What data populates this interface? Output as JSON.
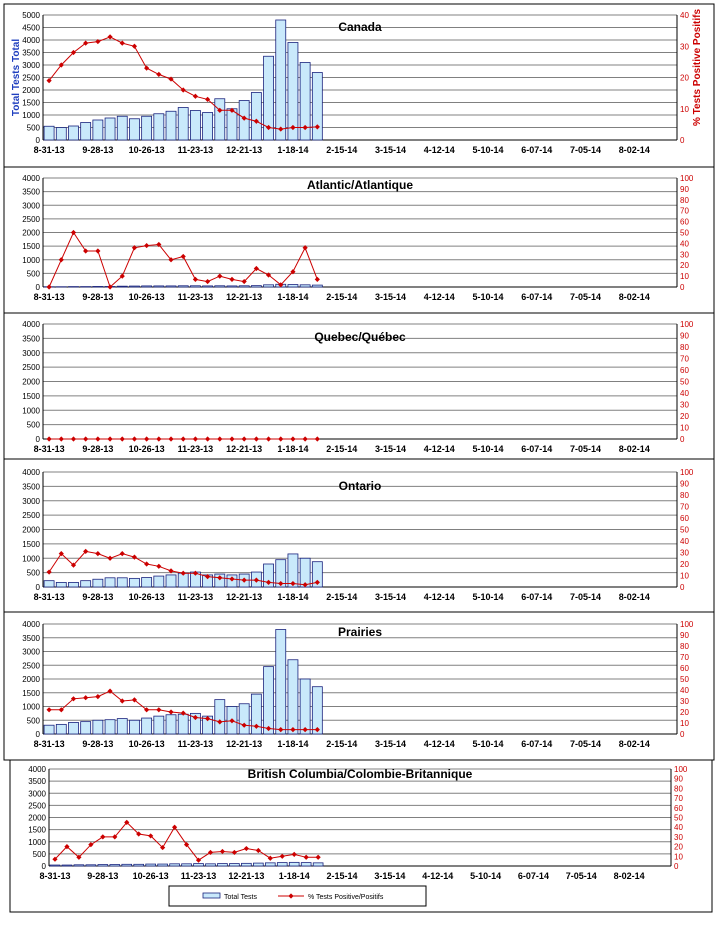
{
  "chart_data": [
    {
      "type": "bar+line",
      "title": "Canada",
      "ylabel": "Total Tests Total",
      "y2label": "% Tests Positive Positifs",
      "ylim": [
        0,
        5000
      ],
      "yticks": [
        0,
        500,
        1000,
        1500,
        2000,
        2500,
        3000,
        3500,
        4000,
        4500,
        5000
      ],
      "y2lim": [
        0,
        40
      ],
      "y2ticks": [
        0,
        10,
        20,
        30,
        40
      ],
      "x_tick_labels": [
        "8-31-13",
        "9-28-13",
        "10-26-13",
        "11-23-13",
        "12-21-13",
        "1-18-14",
        "2-15-14",
        "3-15-14",
        "4-12-14",
        "5-10-14",
        "6-07-14",
        "7-05-14",
        "8-02-14"
      ],
      "series": [
        {
          "name": "Total Tests",
          "kind": "bar",
          "values": [
            550,
            500,
            560,
            700,
            800,
            880,
            950,
            850,
            950,
            1050,
            1150,
            1300,
            1180,
            1100,
            1650,
            1250,
            1580,
            1900,
            3350,
            4800,
            3900,
            3100,
            2700
          ]
        },
        {
          "name": "% Tests Positive/Positifs",
          "kind": "line",
          "values": [
            19,
            24,
            28,
            31,
            31.5,
            33,
            31,
            30,
            23,
            21,
            19.5,
            16,
            14,
            13,
            9.5,
            9.5,
            7,
            6,
            4,
            3.5,
            4,
            4,
            4.2
          ]
        }
      ]
    },
    {
      "type": "bar+line",
      "title": "Atlantic/Atlantique",
      "ylim": [
        0,
        4000
      ],
      "yticks": [
        0,
        500,
        1000,
        1500,
        2000,
        2500,
        3000,
        3500,
        4000
      ],
      "y2lim": [
        0,
        100
      ],
      "y2ticks": [
        0,
        10,
        20,
        30,
        40,
        50,
        60,
        70,
        80,
        90,
        100
      ],
      "x_tick_labels": [
        "8-31-13",
        "9-28-13",
        "10-26-13",
        "11-23-13",
        "12-21-13",
        "1-18-14",
        "2-15-14",
        "3-15-14",
        "4-12-14",
        "5-10-14",
        "6-07-14",
        "7-05-14",
        "8-02-14"
      ],
      "series": [
        {
          "name": "Total Tests",
          "kind": "bar",
          "values": [
            10,
            10,
            15,
            15,
            20,
            20,
            30,
            35,
            40,
            40,
            40,
            45,
            45,
            40,
            45,
            40,
            45,
            50,
            80,
            100,
            90,
            80,
            70
          ]
        },
        {
          "name": "% Tests Positive/Positifs",
          "kind": "line",
          "values": [
            0,
            25,
            50,
            33,
            33,
            0,
            10,
            36,
            38,
            39,
            25,
            28,
            7,
            5,
            10,
            7,
            5,
            17,
            11,
            2,
            14,
            36,
            7
          ]
        }
      ]
    },
    {
      "type": "bar+line",
      "title": "Quebec/Québec",
      "ylim": [
        0,
        4000
      ],
      "yticks": [
        0,
        500,
        1000,
        1500,
        2000,
        2500,
        3000,
        3500,
        4000
      ],
      "y2lim": [
        0,
        100
      ],
      "y2ticks": [
        0,
        10,
        20,
        30,
        40,
        50,
        60,
        70,
        80,
        90,
        100
      ],
      "x_tick_labels": [
        "8-31-13",
        "9-28-13",
        "10-26-13",
        "11-23-13",
        "12-21-13",
        "1-18-14",
        "2-15-14",
        "3-15-14",
        "4-12-14",
        "5-10-14",
        "6-07-14",
        "7-05-14",
        "8-02-14"
      ],
      "series": [
        {
          "name": "Total Tests",
          "kind": "bar",
          "values": [
            0,
            0,
            0,
            0,
            0,
            0,
            0,
            0,
            0,
            0,
            0,
            0,
            0,
            0,
            0,
            0,
            0,
            0,
            0,
            0,
            0,
            0,
            0
          ]
        },
        {
          "name": "% Tests Positive/Positifs",
          "kind": "line",
          "values": [
            0,
            0,
            0,
            0,
            0,
            0,
            0,
            0,
            0,
            0,
            0,
            0,
            0,
            0,
            0,
            0,
            0,
            0,
            0,
            0,
            0,
            0,
            0
          ]
        }
      ]
    },
    {
      "type": "bar+line",
      "title": "Ontario",
      "ylim": [
        0,
        4000
      ],
      "yticks": [
        0,
        500,
        1000,
        1500,
        2000,
        2500,
        3000,
        3500,
        4000
      ],
      "y2lim": [
        0,
        100
      ],
      "y2ticks": [
        0,
        10,
        20,
        30,
        40,
        50,
        60,
        70,
        80,
        90,
        100
      ],
      "x_tick_labels": [
        "8-31-13",
        "9-28-13",
        "10-26-13",
        "11-23-13",
        "12-21-13",
        "1-18-14",
        "2-15-14",
        "3-15-14",
        "4-12-14",
        "5-10-14",
        "6-07-14",
        "7-05-14",
        "8-02-14"
      ],
      "series": [
        {
          "name": "Total Tests",
          "kind": "bar",
          "values": [
            220,
            160,
            160,
            220,
            270,
            320,
            320,
            300,
            330,
            380,
            420,
            480,
            520,
            420,
            450,
            420,
            450,
            520,
            800,
            950,
            1150,
            1000,
            880
          ]
        },
        {
          "name": "% Tests Positive/Positifs",
          "kind": "line",
          "values": [
            13,
            29,
            19,
            31,
            29,
            25,
            29,
            26,
            20,
            18,
            14,
            12,
            12,
            9,
            8,
            7,
            6,
            6,
            4,
            3,
            3,
            2,
            4
          ]
        }
      ]
    },
    {
      "type": "bar+line",
      "title": "Prairies",
      "ylim": [
        0,
        4000
      ],
      "yticks": [
        0,
        500,
        1000,
        1500,
        2000,
        2500,
        3000,
        3500,
        4000
      ],
      "y2lim": [
        0,
        100
      ],
      "y2ticks": [
        0,
        10,
        20,
        30,
        40,
        50,
        60,
        70,
        80,
        90,
        100
      ],
      "x_tick_labels": [
        "8-31-13",
        "9-28-13",
        "10-26-13",
        "11-23-13",
        "12-21-13",
        "1-18-14",
        "2-15-14",
        "3-15-14",
        "4-12-14",
        "5-10-14",
        "6-07-14",
        "7-05-14",
        "8-02-14"
      ],
      "series": [
        {
          "name": "Total Tests",
          "kind": "bar",
          "values": [
            320,
            350,
            420,
            450,
            500,
            520,
            560,
            500,
            580,
            650,
            700,
            720,
            750,
            650,
            1250,
            1000,
            1100,
            1450,
            2450,
            3800,
            2700,
            2000,
            1720
          ]
        },
        {
          "name": "% Tests Positive/Positifs",
          "kind": "line",
          "values": [
            22,
            22,
            32,
            33,
            34,
            39,
            30,
            31,
            22,
            22,
            20,
            19,
            15,
            14,
            11,
            12,
            8,
            7,
            5,
            4,
            4,
            4,
            4
          ]
        }
      ]
    },
    {
      "type": "bar+line",
      "title": "British Columbia/Colombie-Britannique",
      "ylim": [
        0,
        4000
      ],
      "yticks": [
        0,
        500,
        1000,
        1500,
        2000,
        2500,
        3000,
        3500,
        4000
      ],
      "y2lim": [
        0,
        100
      ],
      "y2ticks": [
        0,
        10,
        20,
        30,
        40,
        50,
        60,
        70,
        80,
        90,
        100
      ],
      "x_tick_labels": [
        "8-31-13",
        "9-28-13",
        "10-26-13",
        "11-23-13",
        "12-21-13",
        "1-18-14",
        "2-15-14",
        "3-15-14",
        "4-12-14",
        "5-10-14",
        "6-07-14",
        "7-05-14",
        "8-02-14"
      ],
      "series": [
        {
          "name": "Total Tests",
          "kind": "bar",
          "values": [
            40,
            40,
            50,
            50,
            60,
            60,
            70,
            70,
            80,
            80,
            90,
            90,
            100,
            90,
            100,
            100,
            110,
            120,
            130,
            140,
            150,
            140,
            130
          ]
        },
        {
          "name": "% Tests Positive/Positifs",
          "kind": "line",
          "values": [
            7,
            20,
            9,
            22,
            30,
            30,
            45,
            33,
            31,
            19,
            40,
            22,
            6,
            14,
            15,
            14,
            18,
            16,
            8,
            10,
            12,
            9,
            9
          ]
        }
      ]
    }
  ],
  "legend": {
    "bar_label": "Total Tests",
    "line_label": "% Tests Positive/Positifs"
  },
  "colors": {
    "bar_fill": "#c9e9fb",
    "bar_edge": "#1a237e",
    "line": "#cc0000",
    "grid": "#808080"
  }
}
